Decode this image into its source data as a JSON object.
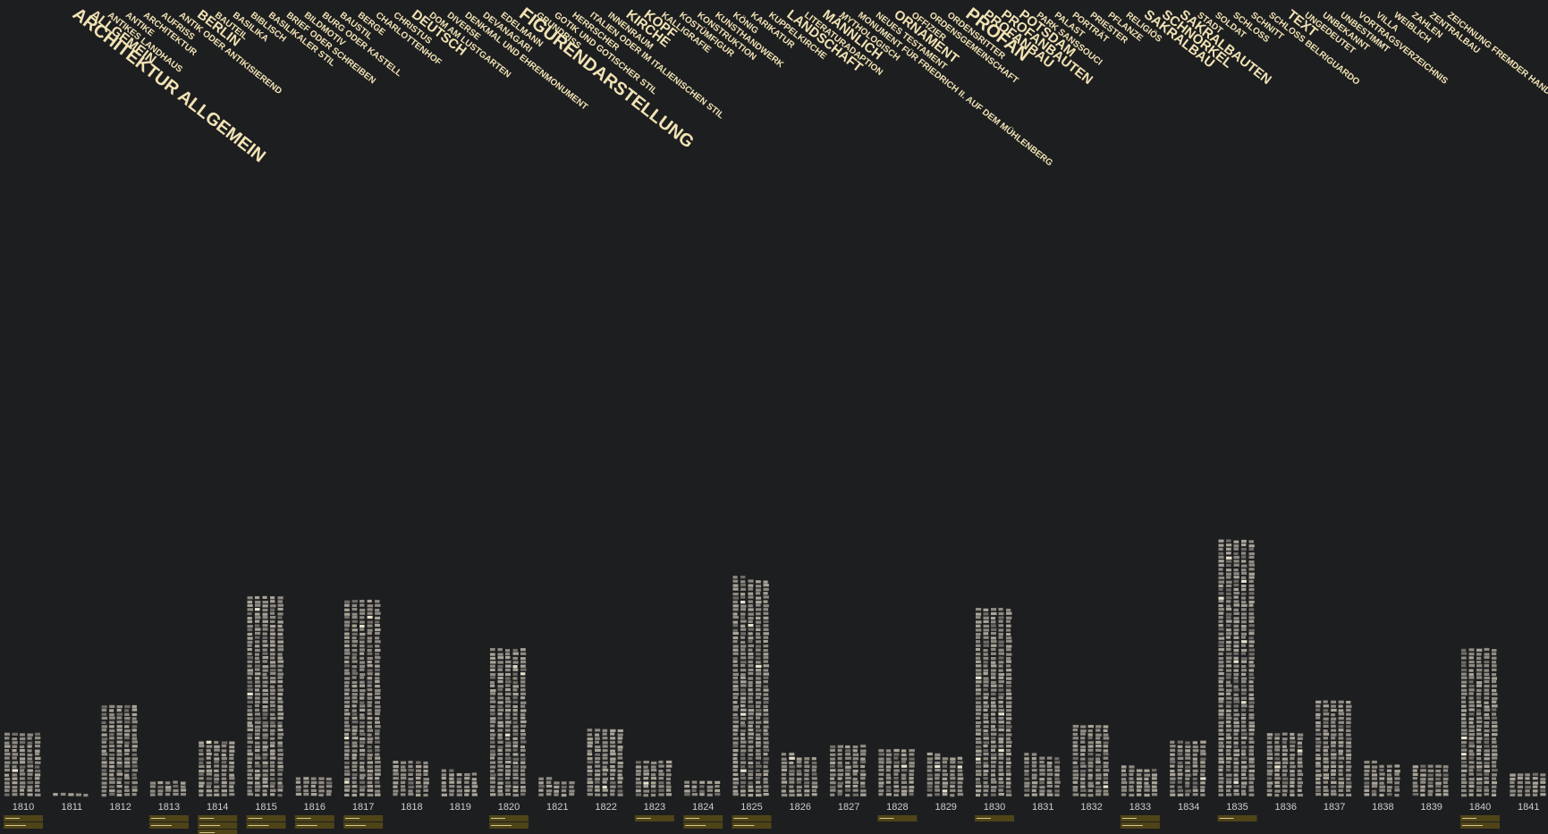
{
  "chart_data": {
    "type": "bar",
    "categories": [
      "1810",
      "1811",
      "1812",
      "1813",
      "1814",
      "1815",
      "1816",
      "1817",
      "1818",
      "1819",
      "1820",
      "1821",
      "1822",
      "1823",
      "1824",
      "1825",
      "1826",
      "1827",
      "1828",
      "1829",
      "1830",
      "1831",
      "1832",
      "1833",
      "1834",
      "1835",
      "1836",
      "1837",
      "1838",
      "1839",
      "1840",
      "1841"
    ],
    "values": [
      80,
      5,
      115,
      20,
      70,
      250,
      25,
      245,
      45,
      32,
      185,
      22,
      85,
      45,
      20,
      272,
      52,
      65,
      60,
      52,
      235,
      52,
      90,
      37,
      70,
      320,
      80,
      120,
      42,
      40,
      185,
      30
    ],
    "keywords": [
      {
        "label": "ARCHITEKTUR ALLGEMEIN",
        "weight": 3
      },
      {
        "label": "ALLGEMEIN",
        "weight": 2
      },
      {
        "label": "ANTIKES LANDHAUS",
        "weight": 1
      },
      {
        "label": "ANTIKE",
        "weight": 1
      },
      {
        "label": "ARCHITEKTUR",
        "weight": 1
      },
      {
        "label": "AUFRISS",
        "weight": 1
      },
      {
        "label": "ANTIK ODER ANTIKISIEREND",
        "weight": 1
      },
      {
        "label": "BERLIN",
        "weight": 2
      },
      {
        "label": "BAUTEIL",
        "weight": 1
      },
      {
        "label": "BASILIKA",
        "weight": 1
      },
      {
        "label": "BIBLISCH",
        "weight": 1
      },
      {
        "label": "BASILIKALER STIL",
        "weight": 1
      },
      {
        "label": "BRIEF ODER SCHREIBEN",
        "weight": 1
      },
      {
        "label": "BILDMOTIV",
        "weight": 1
      },
      {
        "label": "BURG ODER KASTELL",
        "weight": 1
      },
      {
        "label": "BAUSTIL",
        "weight": 1
      },
      {
        "label": "BERGE",
        "weight": 1
      },
      {
        "label": "CHARLOTTENHOF",
        "weight": 1
      },
      {
        "label": "CHRISTUS",
        "weight": 1
      },
      {
        "label": "DEUTSCH",
        "weight": 2
      },
      {
        "label": "DOM AM LUSTGARTEN",
        "weight": 1
      },
      {
        "label": "DIVERSE",
        "weight": 1
      },
      {
        "label": "DENKMAL UND EHRENMONUMENT",
        "weight": 1
      },
      {
        "label": "DEVANAGARI",
        "weight": 1
      },
      {
        "label": "EDELMANN",
        "weight": 1
      },
      {
        "label": "FIGURENDARSTELLUNG",
        "weight": 3
      },
      {
        "label": "GRUNDRISS",
        "weight": 1
      },
      {
        "label": "GOTIK UND GOTISCHER STIL",
        "weight": 1
      },
      {
        "label": "HERRSCHER",
        "weight": 1
      },
      {
        "label": "ITALIEN ODER IM ITALIENISCHEN STIL",
        "weight": 1
      },
      {
        "label": "INNENRAUM",
        "weight": 1
      },
      {
        "label": "KIRCHE",
        "weight": 2
      },
      {
        "label": "KOPF",
        "weight": 2
      },
      {
        "label": "KALLIGRAFIE",
        "weight": 1
      },
      {
        "label": "KOSTÜMFIGUR",
        "weight": 1
      },
      {
        "label": "KONSTRUKTION",
        "weight": 1
      },
      {
        "label": "KUNSTHANDWERK",
        "weight": 1
      },
      {
        "label": "KÖNIG",
        "weight": 1
      },
      {
        "label": "KARIKATUR",
        "weight": 1
      },
      {
        "label": "KUPPELKIRCHE",
        "weight": 1
      },
      {
        "label": "LANDSCHAFT",
        "weight": 2
      },
      {
        "label": "LITERATURADAPTION",
        "weight": 1
      },
      {
        "label": "MÄNNLICH",
        "weight": 2
      },
      {
        "label": "MYTHOLOGISCH",
        "weight": 1
      },
      {
        "label": "MONUMENT FÜR FRIEDRICH II. AUF DEM MÜHLENBERG",
        "weight": 1
      },
      {
        "label": "NEUES TESTAMENT",
        "weight": 1
      },
      {
        "label": "ORNAMENT",
        "weight": 2
      },
      {
        "label": "OFFIZIER",
        "weight": 1
      },
      {
        "label": "ORDENSGEMEINSCHAFT",
        "weight": 1
      },
      {
        "label": "ORDENSRITTER",
        "weight": 1
      },
      {
        "label": "PROFAN",
        "weight": 3
      },
      {
        "label": "PROFANBAU",
        "weight": 2
      },
      {
        "label": "PROFANBAUTEN",
        "weight": 2
      },
      {
        "label": "POTSDAM",
        "weight": 2
      },
      {
        "label": "PARK SANSSOUCI",
        "weight": 1
      },
      {
        "label": "PALAST",
        "weight": 1
      },
      {
        "label": "PORTRÄT",
        "weight": 1
      },
      {
        "label": "PRIESTER",
        "weight": 1
      },
      {
        "label": "PFLANZE",
        "weight": 1
      },
      {
        "label": "RELIGIÖS",
        "weight": 1
      },
      {
        "label": "SAKRALBAU",
        "weight": 2
      },
      {
        "label": "SCHNÖRKEL",
        "weight": 2
      },
      {
        "label": "SAKRALBAUTEN",
        "weight": 2
      },
      {
        "label": "STADT",
        "weight": 1
      },
      {
        "label": "SOLDAT",
        "weight": 1
      },
      {
        "label": "SCHLOSS",
        "weight": 1
      },
      {
        "label": "SCHNITT",
        "weight": 1
      },
      {
        "label": "SCHLOSS BELRIGUARDO",
        "weight": 1
      },
      {
        "label": "TEXT",
        "weight": 2
      },
      {
        "label": "UNGEDEUTET",
        "weight": 1
      },
      {
        "label": "UNBEKANNT",
        "weight": 1
      },
      {
        "label": "UNBESTIMMT",
        "weight": 1
      },
      {
        "label": "VORTRAGSVERZEICHNIS",
        "weight": 1
      },
      {
        "label": "VILLA",
        "weight": 1
      },
      {
        "label": "WEIBLICH",
        "weight": 1
      },
      {
        "label": "ZAHLEN",
        "weight": 1
      },
      {
        "label": "ZENTRALBAU",
        "weight": 1
      },
      {
        "label": "ZEICHNUNG FREMDER HAND",
        "weight": 1
      }
    ],
    "year_tags": [
      {
        "year": "1810",
        "lines": 2
      },
      {
        "year": "1813",
        "lines": 2
      },
      {
        "year": "1814",
        "lines": 3
      },
      {
        "year": "1815",
        "lines": 2
      },
      {
        "year": "1816",
        "lines": 2
      },
      {
        "year": "1817",
        "lines": 2
      },
      {
        "year": "1820",
        "lines": 2
      },
      {
        "year": "1823",
        "lines": 1
      },
      {
        "year": "1824",
        "lines": 2
      },
      {
        "year": "1825",
        "lines": 2
      },
      {
        "year": "1828",
        "lines": 1
      },
      {
        "year": "1830",
        "lines": 1
      },
      {
        "year": "1833",
        "lines": 2
      },
      {
        "year": "1835",
        "lines": 1
      },
      {
        "year": "1840",
        "lines": 2
      }
    ],
    "title": "",
    "xlabel": "",
    "ylabel": "",
    "grid": false,
    "legend": "none"
  },
  "colors": {
    "background": "#1d1e20",
    "keyword": "#f1e3b4",
    "tile": "#8f8b82",
    "tile_highlight": "#e9e3cc",
    "tag": "#4f4418"
  }
}
